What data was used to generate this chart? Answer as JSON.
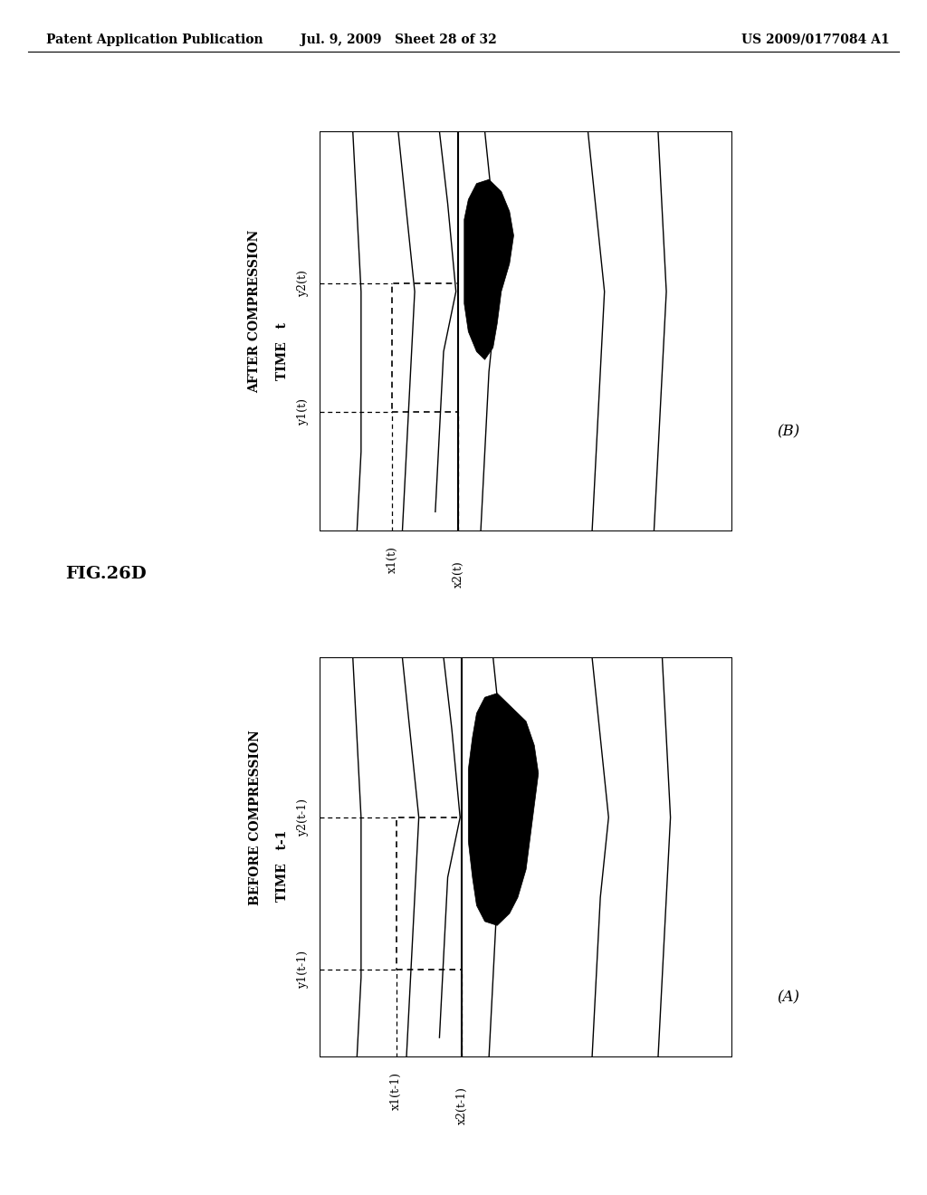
{
  "header_left": "Patent Application Publication",
  "header_mid": "Jul. 9, 2009   Sheet 28 of 32",
  "header_right": "US 2009/0177084 A1",
  "fig_label": "FIG.26D",
  "panel_A_label": "(A)",
  "panel_B_label": "(B)",
  "panel_A_title_line1": "BEFORE COMPRESSION",
  "panel_A_title_line2": "TIME   t-1",
  "panel_B_title_line1": "AFTER COMPRESSION",
  "panel_B_title_line2": "TIME   t",
  "panel_A_xlabel1": "x1(t-1)",
  "panel_A_xlabel2": "x2(t-1)",
  "panel_A_ylabel1": "y1(t-1)",
  "panel_A_ylabel2": "y2(t-1)",
  "panel_B_xlabel1": "x1(t)",
  "panel_B_xlabel2": "x2(t)",
  "panel_B_ylabel1": "y1(t)",
  "panel_B_ylabel2": "y2(t)",
  "bg_color": "#ffffff",
  "font_size_header": 10,
  "font_size_title": 10,
  "font_size_axis": 9,
  "font_size_fig": 14
}
